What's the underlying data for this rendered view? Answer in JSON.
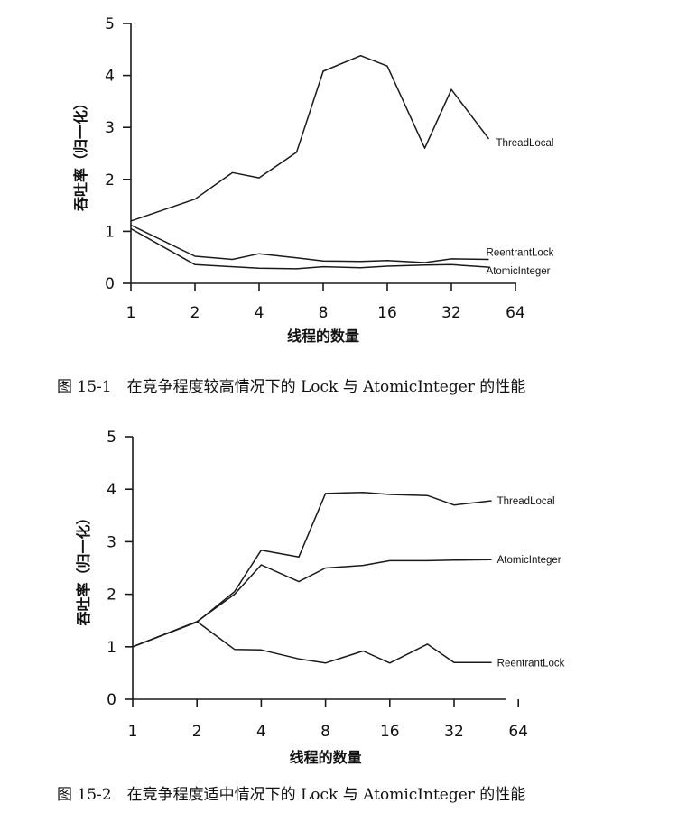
{
  "chart_data": [
    {
      "type": "line",
      "title": "",
      "xlabel": "线程的数量",
      "ylabel": "吞吐率（归一化）",
      "xscale": "log2",
      "x_ticks": [
        1,
        2,
        4,
        8,
        16,
        32,
        64
      ],
      "x_tick_labels": [
        "1",
        "2",
        "4",
        "8",
        "16",
        "32",
        "64"
      ],
      "y_ticks": [
        0,
        1,
        2,
        3,
        4,
        5
      ],
      "y_tick_labels": [
        "0",
        "1",
        "2",
        "3",
        "4",
        "5"
      ],
      "ylim": [
        0,
        5
      ],
      "grid": false,
      "caption": "图 15-1　在竞争程度较高情况下的 Lock 与 AtomicInteger 的性能",
      "x": [
        1,
        2,
        3,
        4,
        6,
        8,
        12,
        16,
        24,
        32,
        48
      ],
      "series": [
        {
          "name": "ThreadLocal",
          "values": [
            1.2,
            1.62,
            2.13,
            2.03,
            2.52,
            4.08,
            4.38,
            4.18,
            2.6,
            3.73,
            2.78
          ]
        },
        {
          "name": "ReentrantLock",
          "values": [
            1.12,
            0.52,
            0.46,
            0.57,
            0.49,
            0.43,
            0.42,
            0.44,
            0.4,
            0.47,
            0.46
          ]
        },
        {
          "name": "AtomicInteger",
          "values": [
            1.05,
            0.36,
            0.32,
            0.29,
            0.28,
            0.32,
            0.3,
            0.33,
            0.35,
            0.36,
            0.31
          ]
        }
      ]
    },
    {
      "type": "line",
      "title": "",
      "xlabel": "线程的数量",
      "ylabel": "吞吐率（归一化）",
      "xscale": "log2",
      "x_ticks": [
        1,
        2,
        4,
        8,
        16,
        32,
        64
      ],
      "x_tick_labels": [
        "1",
        "2",
        "4",
        "8",
        "16",
        "32",
        "64"
      ],
      "y_ticks": [
        0,
        1,
        2,
        3,
        4,
        5
      ],
      "y_tick_labels": [
        "0",
        "1",
        "2",
        "3",
        "4",
        "5"
      ],
      "ylim": [
        0,
        5
      ],
      "grid": false,
      "caption": "图 15-2　在竞争程度适中情况下的 Lock 与 AtomicInteger 的性能",
      "x": [
        1,
        2,
        3,
        4,
        6,
        8,
        12,
        16,
        24,
        32,
        48
      ],
      "series": [
        {
          "name": "ThreadLocal",
          "values": [
            1.0,
            1.47,
            2.05,
            2.84,
            2.71,
            3.92,
            3.94,
            3.9,
            3.88,
            3.7,
            3.78
          ]
        },
        {
          "name": "AtomicInteger",
          "values": [
            1.0,
            1.48,
            2.0,
            2.56,
            2.24,
            2.5,
            2.55,
            2.64,
            2.64,
            2.65,
            2.66
          ]
        },
        {
          "name": "ReentrantLock",
          "values": [
            1.0,
            1.48,
            0.95,
            0.94,
            0.77,
            0.69,
            0.92,
            0.69,
            1.05,
            0.7,
            0.7
          ]
        }
      ]
    }
  ]
}
